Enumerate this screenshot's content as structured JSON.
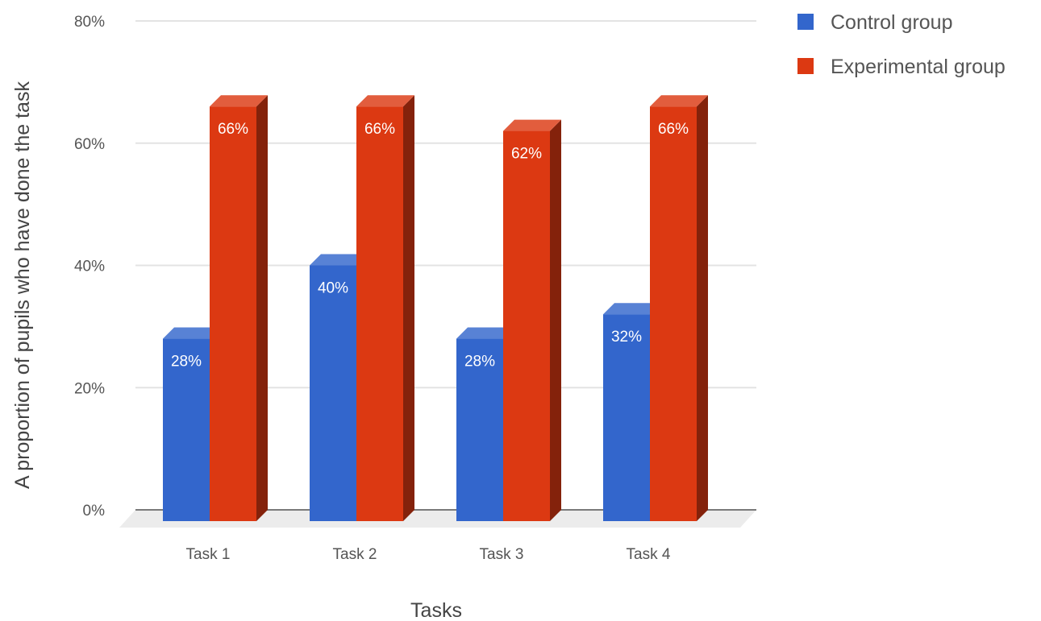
{
  "chart_data": {
    "type": "bar",
    "title": "",
    "xlabel": "Tasks",
    "ylabel": "A proportion of pupils who have done the task",
    "categories": [
      "Task 1",
      "Task 2",
      "Task 3",
      "Task 4"
    ],
    "series": [
      {
        "name": "Control group",
        "color": "#3366cc",
        "values": [
          28,
          40,
          28,
          32
        ],
        "labels": [
          "28%",
          "40%",
          "28%",
          "32%"
        ]
      },
      {
        "name": "Experimental group",
        "color": "#dc3912",
        "values": [
          66,
          66,
          62,
          66
        ],
        "labels": [
          "66%",
          "66%",
          "62%",
          "66%"
        ]
      }
    ],
    "ylim": [
      0,
      80
    ],
    "yticks": [
      0,
      20,
      40,
      60,
      80
    ],
    "ytick_labels": [
      "0%",
      "20%",
      "40%",
      "60%",
      "80%"
    ],
    "grid": true,
    "legend_position": "top-right",
    "style": "3d"
  }
}
